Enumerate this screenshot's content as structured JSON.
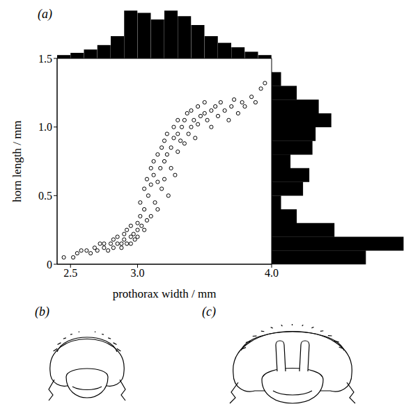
{
  "chart_data": {
    "type": "scatter",
    "panel_label": "(a)",
    "x_label": "prothorax width / mm",
    "y_label": "horn length / mm",
    "xlim": [
      2.4,
      4.0
    ],
    "xticks": [
      2.5,
      {
        "value": 3,
        "label": "3.0"
      },
      {
        "value": 4,
        "label": "4.0"
      }
    ],
    "ylim": [
      0,
      1.5
    ],
    "yticks": [
      0,
      0.5,
      {
        "value": 1,
        "label": "1.0"
      },
      {
        "value": 1.5,
        "label": "1.5"
      }
    ],
    "color": "#000000",
    "marker": "circle",
    "x": [
      2.45,
      2.52,
      2.55,
      2.58,
      2.62,
      2.65,
      2.68,
      2.7,
      2.72,
      2.75,
      2.75,
      2.78,
      2.8,
      2.82,
      2.82,
      2.85,
      2.85,
      2.88,
      2.88,
      2.9,
      2.9,
      2.92,
      2.92,
      2.95,
      2.95,
      2.95,
      2.97,
      2.98,
      3,
      3,
      3,
      3.02,
      3.02,
      3.03,
      3.05,
      3.05,
      3.05,
      3.07,
      3.07,
      3.08,
      3.1,
      3.1,
      3.1,
      3.12,
      3.12,
      3.13,
      3.15,
      3.15,
      3.15,
      3.17,
      3.18,
      3.18,
      3.2,
      3.2,
      3.2,
      3.22,
      3.22,
      3.23,
      3.25,
      3.25,
      3.27,
      3.27,
      3.28,
      3.3,
      3.3,
      3.3,
      3.32,
      3.33,
      3.35,
      3.35,
      3.37,
      3.38,
      3.4,
      3.4,
      3.42,
      3.43,
      3.45,
      3.45,
      3.47,
      3.5,
      3.5,
      3.52,
      3.55,
      3.55,
      3.58,
      3.6,
      3.62,
      3.65,
      3.68,
      3.7,
      3.72,
      3.75,
      3.78,
      3.8,
      3.85,
      3.88,
      3.92,
      3.95
    ],
    "y": [
      0.05,
      0.05,
      0.08,
      0.1,
      0.1,
      0.08,
      0.12,
      0.1,
      0.15,
      0.12,
      0.15,
      0.1,
      0.15,
      0.12,
      0.18,
      0.15,
      0.2,
      0.15,
      0.12,
      0.18,
      0.22,
      0.15,
      0.25,
      0.2,
      0.15,
      0.28,
      0.22,
      0.18,
      0.25,
      0.3,
      0.2,
      0.35,
      0.45,
      0.28,
      0.55,
      0.4,
      0.25,
      0.62,
      0.32,
      0.5,
      0.7,
      0.58,
      0.35,
      0.65,
      0.75,
      0.45,
      0.8,
      0.6,
      0.4,
      0.7,
      0.85,
      0.55,
      0.9,
      0.75,
      0.62,
      0.8,
      0.95,
      0.5,
      0.85,
      0.7,
      0.92,
      1,
      0.65,
      0.95,
      0.82,
      1.05,
      0.9,
      1,
      1.05,
      0.88,
      1.1,
      0.95,
      1,
      1.12,
      1.05,
      0.92,
      1.15,
      1.02,
      1.08,
      1.1,
      1.18,
      1.05,
      1.12,
      1,
      1.15,
      1.08,
      1.18,
      1.12,
      1.05,
      1.15,
      1.2,
      1.1,
      1.18,
      1.15,
      1.22,
      1.18,
      1.28,
      1.32
    ],
    "top_histogram": {
      "bins": [
        2.4,
        2.5,
        2.6,
        2.7,
        2.8,
        2.9,
        3.0,
        3.1,
        3.2,
        3.3,
        3.4,
        3.5,
        3.6,
        3.7,
        3.8,
        3.9,
        4.0
      ],
      "counts": [
        3,
        5,
        8,
        12,
        20,
        43,
        41,
        35,
        43,
        38,
        30,
        20,
        14,
        10,
        6,
        3
      ],
      "count_lim": [
        0,
        45
      ],
      "color": "#000000"
    },
    "right_histogram": {
      "bins": [
        0,
        0.1,
        0.2,
        0.3,
        0.4,
        0.5,
        0.6,
        0.7,
        0.8,
        0.9,
        1.0,
        1.1,
        1.2,
        1.3,
        1.4,
        1.5
      ],
      "counts": [
        30,
        42,
        20,
        8,
        3,
        10,
        12,
        6,
        13,
        14,
        19,
        15,
        8,
        3,
        0
      ],
      "count_lim": [
        0,
        45
      ],
      "color": "#000000"
    }
  },
  "drawing_labels": [
    "(b)",
    "(c)"
  ]
}
